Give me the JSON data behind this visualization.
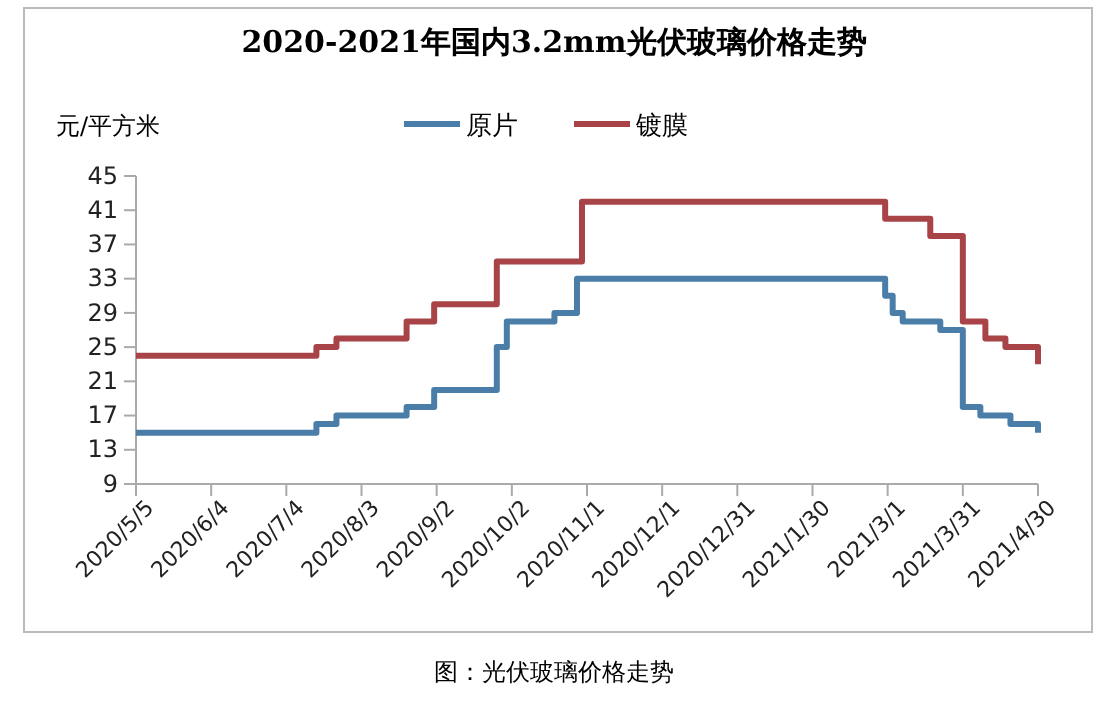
{
  "chart_data": {
    "type": "step",
    "title": "2020-2021年国内3.2mm光伏玻璃价格走势",
    "ylabel": "元/平方米",
    "annotations": [
      "图：光伏玻璃价格走势"
    ],
    "xlim": [
      "2020-05-05",
      "2021-04-30"
    ],
    "xticks": [
      {
        "value": "2020-05-05",
        "label": "2020/5/5"
      },
      {
        "value": "2020-06-04",
        "label": "2020/6/4"
      },
      {
        "value": "2020-07-04",
        "label": "2020/7/4"
      },
      {
        "value": "2020-08-03",
        "label": "2020/8/3"
      },
      {
        "value": "2020-09-02",
        "label": "2020/9/2"
      },
      {
        "value": "2020-10-02",
        "label": "2020/10/2"
      },
      {
        "value": "2020-11-01",
        "label": "2020/11/1"
      },
      {
        "value": "2020-12-01",
        "label": "2020/12/1"
      },
      {
        "value": "2020-12-31",
        "label": "2020/12/31"
      },
      {
        "value": "2021-01-30",
        "label": "2021/1/30"
      },
      {
        "value": "2021-03-01",
        "label": "2021/3/1"
      },
      {
        "value": "2021-03-31",
        "label": "2021/3/31"
      },
      {
        "value": "2021-04-30",
        "label": "2021/4/30"
      }
    ],
    "ylim": [
      9,
      45
    ],
    "yticks": [
      9,
      13,
      17,
      21,
      25,
      29,
      33,
      37,
      41,
      45
    ],
    "grid": false,
    "legend": "top",
    "series": [
      {
        "name": "原片",
        "color": "#4a7ea8",
        "x": [
          "2020-05-05",
          "2020-07-16",
          "2020-07-24",
          "2020-08-21",
          "2020-09-01",
          "2020-09-26",
          "2020-09-30",
          "2020-10-19",
          "2020-10-28",
          "2021-02-28",
          "2021-03-03",
          "2021-03-07",
          "2021-03-22",
          "2021-03-31",
          "2021-04-07",
          "2021-04-19",
          "2021-04-30"
        ],
        "values": [
          15,
          16,
          17,
          18,
          20,
          25,
          28,
          29,
          33,
          31,
          29,
          28,
          27,
          18,
          17,
          16,
          15
        ]
      },
      {
        "name": "镀膜",
        "color": "#a84447",
        "x": [
          "2020-05-05",
          "2020-07-16",
          "2020-07-24",
          "2020-08-21",
          "2020-09-01",
          "2020-09-26",
          "2020-10-30",
          "2021-02-28",
          "2021-03-18",
          "2021-03-31",
          "2021-04-09",
          "2021-04-17",
          "2021-04-30"
        ],
        "values": [
          24,
          25,
          26,
          28,
          30,
          35,
          42,
          40,
          38,
          28,
          26,
          25,
          23
        ]
      }
    ]
  }
}
